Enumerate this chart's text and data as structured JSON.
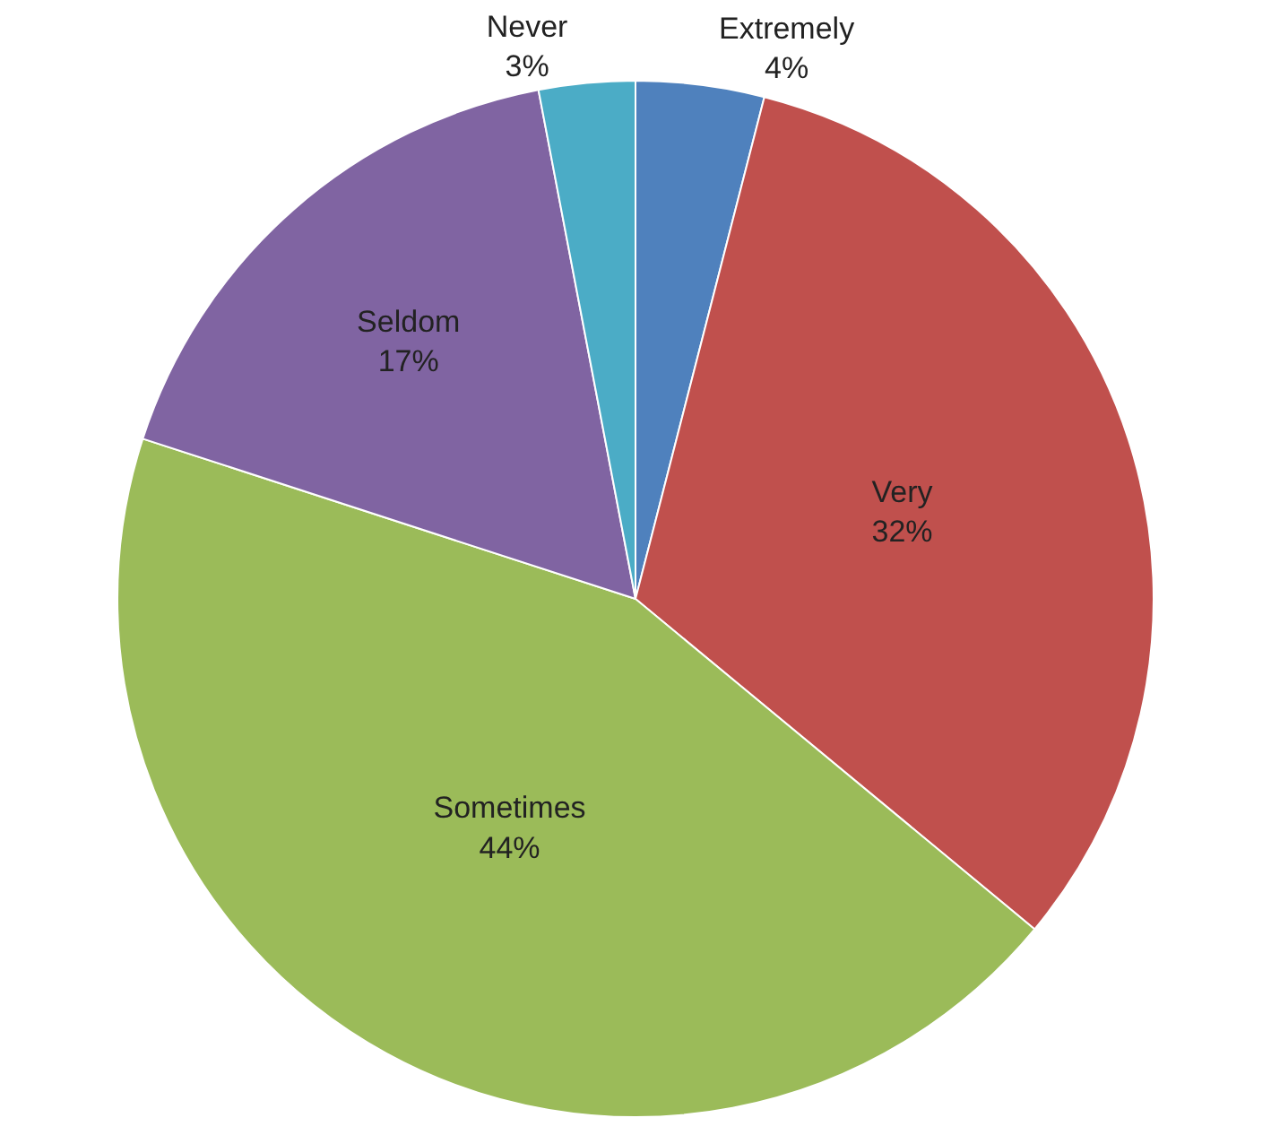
{
  "chart_data": {
    "type": "pie",
    "categories": [
      "Extremely",
      "Very",
      "Sometimes",
      "Seldom",
      "Never"
    ],
    "values": [
      4,
      32,
      44,
      17,
      3
    ],
    "value_labels": [
      "4%",
      "32%",
      "44%",
      "17%",
      "3%"
    ],
    "colors": [
      "#4f81bd",
      "#c0504d",
      "#9bbb59",
      "#8064a2",
      "#4bacc6"
    ],
    "data_labels": true,
    "legend": false
  }
}
